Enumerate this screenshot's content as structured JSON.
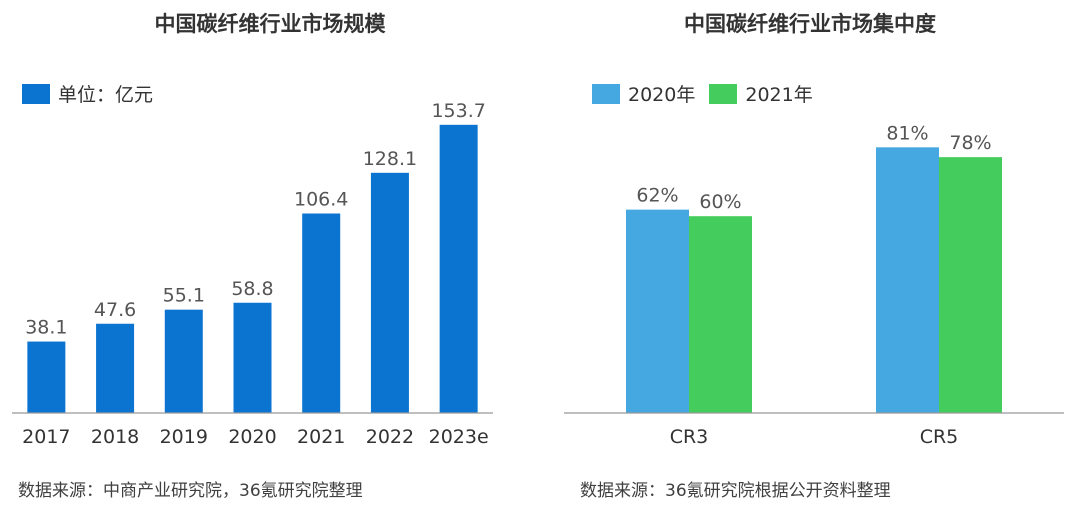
{
  "chart_data": [
    {
      "type": "bar",
      "title": "中国碳纤维行业市场规模",
      "legend": [
        {
          "label": "单位：亿元",
          "color": "#0B74D0"
        }
      ],
      "legend_position": "top-left",
      "categories": [
        "2017",
        "2018",
        "2019",
        "2020",
        "2021",
        "2022",
        "2023e"
      ],
      "series": [
        {
          "name": "单位：亿元",
          "values": [
            38.1,
            47.6,
            55.1,
            58.8,
            106.4,
            128.1,
            153.7
          ],
          "value_labels": [
            "38.1",
            "47.6",
            "55.1",
            "58.8",
            "106.4",
            "128.1",
            "153.7"
          ],
          "color": "#0B74D0"
        }
      ],
      "ylim": [
        0,
        160
      ],
      "grid": false,
      "source": "数据来源：中商产业研究院，36氪研究院整理"
    },
    {
      "type": "bar",
      "title": "中国碳纤维行业市场集中度",
      "legend": [
        {
          "label": "2020年",
          "color": "#45A8E0"
        },
        {
          "label": "2021年",
          "color": "#44CC5C"
        }
      ],
      "legend_position": "top-left",
      "categories": [
        "CR3",
        "CR5"
      ],
      "series": [
        {
          "name": "2020年",
          "values": [
            62,
            81
          ],
          "value_labels": [
            "62%",
            "81%"
          ],
          "color": "#45A8E0"
        },
        {
          "name": "2021年",
          "values": [
            60,
            78
          ],
          "value_labels": [
            "60%",
            "78%"
          ],
          "color": "#44CC5C"
        }
      ],
      "ylim": [
        0,
        100
      ],
      "grid": false,
      "source": "数据来源：36氪研究院根据公开资料整理"
    }
  ]
}
